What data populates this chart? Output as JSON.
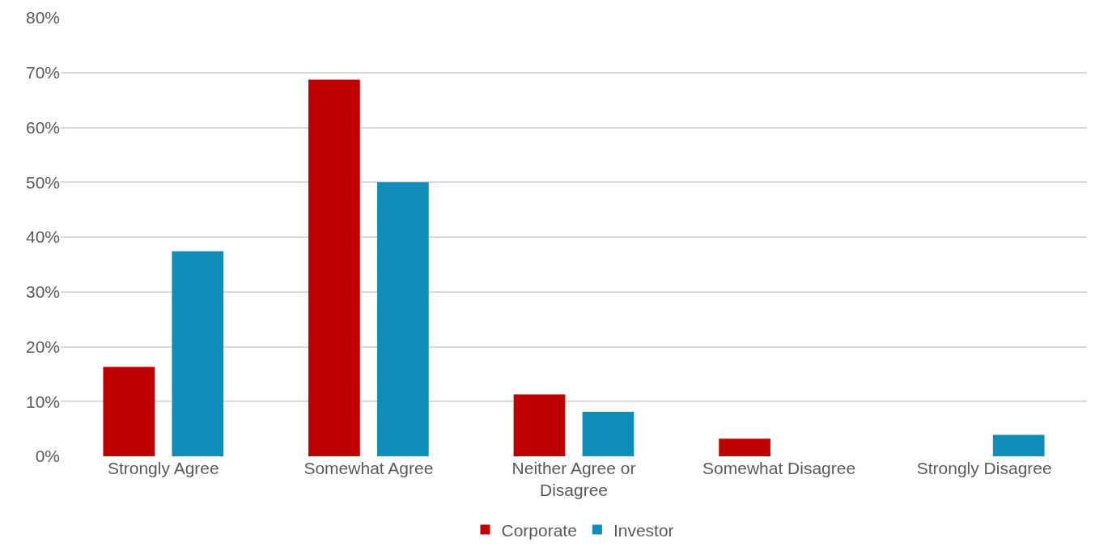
{
  "chart_data": {
    "type": "bar",
    "categories": [
      "Strongly Agree",
      "Somewhat Agree",
      "Neither Agree or Disagree",
      "Somewhat Disagree",
      "Strongly Disagree"
    ],
    "series": [
      {
        "name": "Corporate",
        "color": "#c00000",
        "values": [
          16.3,
          68.7,
          11.3,
          3.2,
          0
        ]
      },
      {
        "name": "Investor",
        "color": "#118dba",
        "values": [
          37.4,
          50,
          8.1,
          0,
          3.9
        ]
      }
    ],
    "ylim": [
      0,
      80
    ],
    "yticks": [
      {
        "value": 0,
        "label": "0%"
      },
      {
        "value": 10,
        "label": "10%"
      },
      {
        "value": 20,
        "label": "20%"
      },
      {
        "value": 30,
        "label": "30%"
      },
      {
        "value": 40,
        "label": "40%"
      },
      {
        "value": 50,
        "label": "50%"
      },
      {
        "value": 60,
        "label": "60%"
      },
      {
        "value": 70,
        "label": "70%"
      },
      {
        "value": 80,
        "label": "80%"
      }
    ],
    "grid": "y",
    "legend": "bottom"
  }
}
